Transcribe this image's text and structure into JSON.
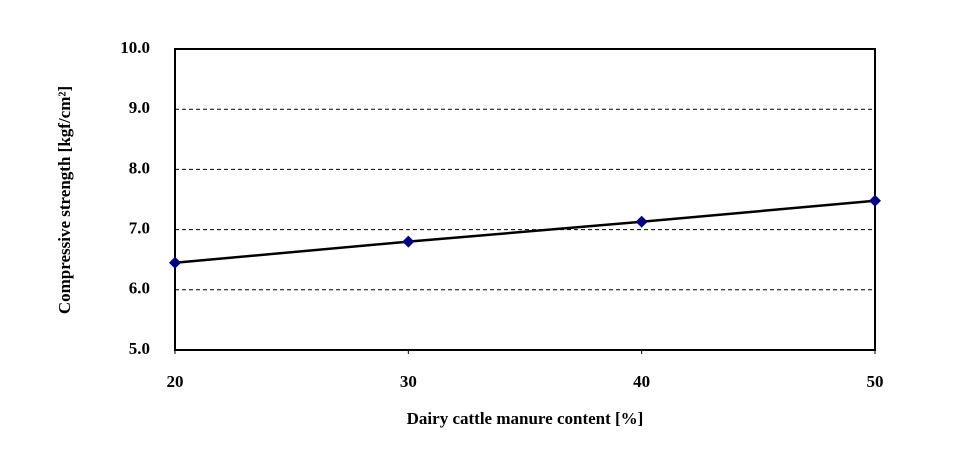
{
  "chart_data": {
    "type": "line",
    "xlabel": "Dairy cattle manure content [%]",
    "ylabel": "Compressive strength [kgf/cm²]",
    "x": [
      20,
      30,
      40,
      50
    ],
    "series": [
      {
        "name": "Compressive strength",
        "color": "#000000",
        "marker_color": "#000080",
        "values": [
          6.45,
          6.8,
          7.13,
          7.48
        ]
      }
    ],
    "xlim": [
      20,
      50
    ],
    "xticks": [
      20,
      30,
      40,
      50
    ],
    "ylim": [
      5,
      10
    ],
    "yticks": [
      {
        "value": 5,
        "label": "5.0"
      },
      {
        "value": 6,
        "label": "6.0"
      },
      {
        "value": 7,
        "label": "7.0"
      },
      {
        "value": 8,
        "label": "8.0"
      },
      {
        "value": 9,
        "label": "9.0"
      },
      {
        "value": 10,
        "label": "10.0"
      }
    ],
    "grid": true
  }
}
